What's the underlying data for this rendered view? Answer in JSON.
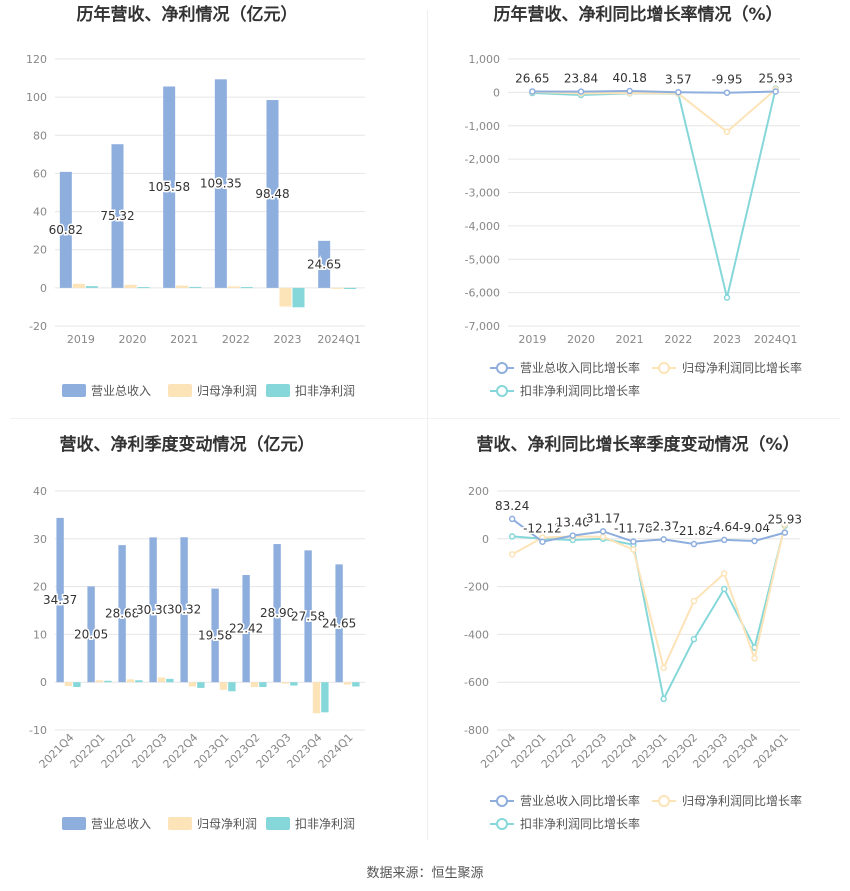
{
  "source_note": "数据来源：恒生聚源",
  "colors": {
    "revenue": "#8eaede",
    "parent_profit": "#fde3b8",
    "deducted_profit": "#86d7d9",
    "revenue_line": "#8eaede",
    "parent_line": "#fde3b8",
    "deducted_line": "#86d7d9",
    "grid": "#e6e6e6",
    "axis_text": "#888888",
    "label_text": "#333333"
  },
  "chart_data": [
    {
      "id": "annual-bars",
      "type": "bar",
      "title": "历年营收、净利情况（亿元）",
      "categories": [
        "2019",
        "2020",
        "2021",
        "2022",
        "2023",
        "2024Q1"
      ],
      "ylim": [
        -20,
        120
      ],
      "yticks": [
        -20,
        0,
        20,
        40,
        60,
        80,
        100,
        120
      ],
      "series": [
        {
          "name": "营业总收入",
          "values": [
            60.82,
            75.32,
            105.58,
            109.35,
            98.48,
            24.65
          ],
          "labels": [
            "60.82",
            "75.32",
            "105.58",
            "109.35",
            "98.48",
            "24.65"
          ]
        },
        {
          "name": "归母净利润",
          "values": [
            2.1,
            1.6,
            1.2,
            0.8,
            -9.8,
            -0.3
          ]
        },
        {
          "name": "扣非净利润",
          "values": [
            0.9,
            0.4,
            0.5,
            0.4,
            -10.2,
            -0.6
          ]
        }
      ],
      "legend": "bottom"
    },
    {
      "id": "annual-growth",
      "type": "line",
      "title": "历年营收、净利同比增长率情况（%）",
      "categories": [
        "2019",
        "2020",
        "2021",
        "2022",
        "2023",
        "2024Q1"
      ],
      "ylim": [
        -7000,
        1000
      ],
      "yticks": [
        -7000,
        -6000,
        -5000,
        -4000,
        -3000,
        -2000,
        -1000,
        0,
        1000
      ],
      "ytick_labels": [
        "-7,000",
        "-6,000",
        "-5,000",
        "-4,000",
        "-3,000",
        "-2,000",
        "-1,000",
        "0",
        "1,000"
      ],
      "series": [
        {
          "name": "营业总收入同比增长率",
          "values": [
            26.65,
            23.84,
            40.18,
            3.57,
            -9.95,
            25.93
          ],
          "labels": [
            "26.65",
            "23.84",
            "40.18",
            "3.57",
            "-9.95",
            "25.93"
          ]
        },
        {
          "name": "归母净利润同比增长率",
          "values": [
            15,
            -30,
            -20,
            -35,
            -1180,
            90
          ]
        },
        {
          "name": "扣非净利润同比增长率",
          "values": [
            -20,
            -80,
            -30,
            -40,
            -6150,
            110
          ]
        }
      ],
      "legend": "bottom"
    },
    {
      "id": "quarterly-bars",
      "type": "bar",
      "title": "营收、净利季度变动情况（亿元）",
      "categories": [
        "2021Q4",
        "2022Q1",
        "2022Q2",
        "2022Q3",
        "2022Q4",
        "2023Q1",
        "2023Q2",
        "2023Q3",
        "2023Q4",
        "2024Q1"
      ],
      "ylim": [
        -10,
        40
      ],
      "yticks": [
        -10,
        0,
        10,
        20,
        30,
        40
      ],
      "series": [
        {
          "name": "营业总收入",
          "values": [
            34.37,
            20.05,
            28.68,
            30.3,
            30.32,
            19.58,
            22.42,
            28.9,
            27.58,
            24.65
          ],
          "labels": [
            "34.37",
            "20.05",
            "28.68",
            "30.30",
            "30.32",
            "19.58",
            "22.42",
            "28.90",
            "27.58",
            "24.65"
          ]
        },
        {
          "name": "归母净利润",
          "values": [
            -0.8,
            0.4,
            0.6,
            1.0,
            -0.9,
            -1.6,
            -1.0,
            -0.3,
            -6.5,
            -0.5
          ]
        },
        {
          "name": "扣非净利润",
          "values": [
            -1.0,
            0.3,
            0.4,
            0.7,
            -1.2,
            -1.9,
            -1.0,
            -0.7,
            -6.3,
            -0.9
          ]
        }
      ],
      "legend": "bottom"
    },
    {
      "id": "quarterly-growth",
      "type": "line",
      "title": "营收、净利同比增长率季度变动情况（%）",
      "categories": [
        "2021Q4",
        "2022Q1",
        "2022Q2",
        "2022Q3",
        "2022Q4",
        "2023Q1",
        "2023Q2",
        "2023Q3",
        "2023Q4",
        "2024Q1"
      ],
      "ylim": [
        -800,
        200
      ],
      "yticks": [
        -800,
        -600,
        -400,
        -200,
        0,
        200
      ],
      "ytick_labels": [
        "-800",
        "-600",
        "-400",
        "-200",
        "0",
        "200"
      ],
      "series": [
        {
          "name": "营业总收入同比增长率",
          "values": [
            83.24,
            -12.12,
            13.4,
            31.17,
            -11.78,
            -2.37,
            -21.82,
            -4.64,
            -9.04,
            25.93
          ],
          "labels": [
            "83.24",
            "-12.12",
            "13.40",
            "31.17",
            "-11.78",
            "-2.37",
            "-21.82",
            "-4.64",
            "-9.04",
            "25.93"
          ]
        },
        {
          "name": "归母净利润同比增长率",
          "values": [
            -65,
            5,
            10,
            8,
            -45,
            -540,
            -260,
            -145,
            -500,
            60
          ]
        },
        {
          "name": "扣非净利润同比增长率",
          "values": [
            10,
            0,
            -5,
            0,
            -25,
            -670,
            -420,
            -210,
            -455,
            55
          ]
        }
      ],
      "legend": "bottom"
    }
  ]
}
